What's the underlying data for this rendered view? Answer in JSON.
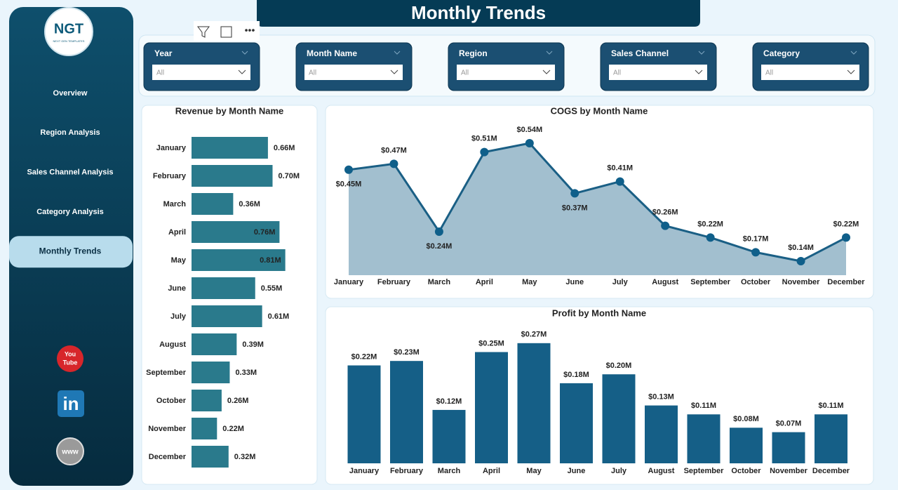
{
  "header": {
    "title": "Monthly Trends"
  },
  "logo": {
    "text": "NGT",
    "tagline": "NEXT GEN TEMPLATES"
  },
  "nav": [
    "Overview",
    "Region Analysis",
    "Sales Channel Analysis",
    "Category Analysis",
    "Monthly Trends"
  ],
  "social": {
    "youtube": [
      "You",
      "Tube"
    ],
    "linkedin": "in",
    "web": "www"
  },
  "filters": [
    {
      "label": "Year",
      "value": "All"
    },
    {
      "label": "Month Name",
      "value": "All"
    },
    {
      "label": "Region",
      "value": "All"
    },
    {
      "label": "Sales Channel",
      "value": "All"
    },
    {
      "label": "Category",
      "value": "All"
    }
  ],
  "chart_data": [
    {
      "type": "bar",
      "orientation": "horizontal",
      "title": "Revenue by Month Name",
      "color": "#2a7a8c",
      "categories": [
        "January",
        "February",
        "March",
        "April",
        "May",
        "June",
        "July",
        "August",
        "September",
        "October",
        "November",
        "December"
      ],
      "values": [
        0.66,
        0.7,
        0.36,
        0.76,
        0.81,
        0.55,
        0.61,
        0.39,
        0.33,
        0.26,
        0.22,
        0.32
      ],
      "value_labels": [
        "0.66M",
        "0.70M",
        "0.36M",
        "0.76M",
        "0.81M",
        "0.55M",
        "0.61M",
        "0.39M",
        "0.33M",
        "0.26M",
        "0.22M",
        "0.32M"
      ]
    },
    {
      "type": "area",
      "title": "COGS by Month Name",
      "color": "#1a5f85",
      "fill": "#a2bfcf",
      "categories": [
        "January",
        "February",
        "March",
        "April",
        "May",
        "June",
        "July",
        "August",
        "September",
        "October",
        "November",
        "December"
      ],
      "values": [
        0.45,
        0.47,
        0.24,
        0.51,
        0.54,
        0.37,
        0.41,
        0.26,
        0.22,
        0.17,
        0.14,
        0.22
      ],
      "value_labels": [
        "$0.45M",
        "$0.47M",
        "$0.24M",
        "$0.51M",
        "$0.54M",
        "$0.37M",
        "$0.41M",
        "$0.26M",
        "$0.22M",
        "$0.17M",
        "$0.14M",
        "$0.22M"
      ]
    },
    {
      "type": "bar",
      "orientation": "vertical",
      "title": "Profit by Month Name",
      "color": "#155f87",
      "categories": [
        "January",
        "February",
        "March",
        "April",
        "May",
        "June",
        "July",
        "August",
        "September",
        "October",
        "November",
        "December"
      ],
      "values": [
        0.22,
        0.23,
        0.12,
        0.25,
        0.27,
        0.18,
        0.2,
        0.13,
        0.11,
        0.08,
        0.07,
        0.11
      ],
      "value_labels": [
        "$0.22M",
        "$0.23M",
        "$0.12M",
        "$0.25M",
        "$0.27M",
        "$0.18M",
        "$0.20M",
        "$0.13M",
        "$0.11M",
        "$0.08M",
        "$0.07M",
        "$0.11M"
      ]
    }
  ]
}
